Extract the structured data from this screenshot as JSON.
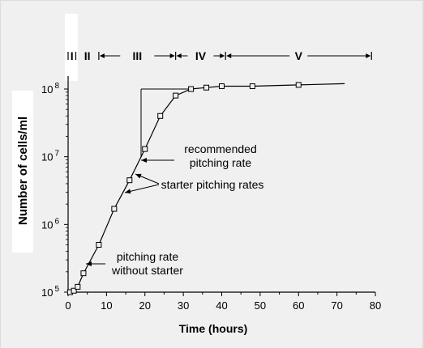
{
  "chart_data": {
    "type": "line",
    "xlabel": "Time (hours)",
    "ylabel": "Number of cells/ml",
    "x_ticks": [
      "0",
      "10",
      "20",
      "30",
      "40",
      "50",
      "60",
      "70",
      "80"
    ],
    "xlim": [
      0,
      80
    ],
    "y_scale": "log",
    "ylim": [
      100000,
      100000000
    ],
    "y_ticks": [
      {
        "base": "10",
        "exp": "5",
        "value": 100000
      },
      {
        "base": "10",
        "exp": "6",
        "value": 1000000
      },
      {
        "base": "10",
        "exp": "7",
        "value": 10000000
      },
      {
        "base": "10",
        "exp": "8",
        "value": 100000000
      }
    ],
    "series": [
      {
        "x": [
          0.5,
          1.5,
          2.5,
          4,
          8,
          12,
          16,
          20,
          24,
          28,
          32,
          36,
          40,
          48,
          60,
          72
        ],
        "y": [
          100000,
          105000,
          120000,
          190000,
          500000,
          1700000,
          4500000,
          13000000,
          40000000,
          80000000,
          100000000,
          105000000,
          110000000,
          110000000,
          115000000,
          120000000
        ],
        "marker_x": [
          0.5,
          1.5,
          2.5,
          4,
          8,
          12,
          16,
          20,
          24,
          28,
          32,
          36,
          40,
          48,
          60
        ]
      }
    ],
    "phases": [
      {
        "label": "I",
        "x_start": 0,
        "x_end": 2
      },
      {
        "label": "II",
        "x_start": 2,
        "x_end": 8
      },
      {
        "label": "III",
        "x_start": 8,
        "x_end": 28
      },
      {
        "label": "IV",
        "x_start": 28,
        "x_end": 41
      },
      {
        "label": "V",
        "x_start": 41,
        "x_end": 79
      }
    ],
    "annotations": {
      "recommended": [
        "recommended",
        "pitching rate"
      ],
      "starter": [
        "starter pitching rates"
      ],
      "no_starter": [
        "pitching rate",
        "without starter"
      ]
    },
    "reference_line": {
      "x": 19,
      "y_bottom": 10000000,
      "y_top": 100000000,
      "x_end": 32
    }
  }
}
